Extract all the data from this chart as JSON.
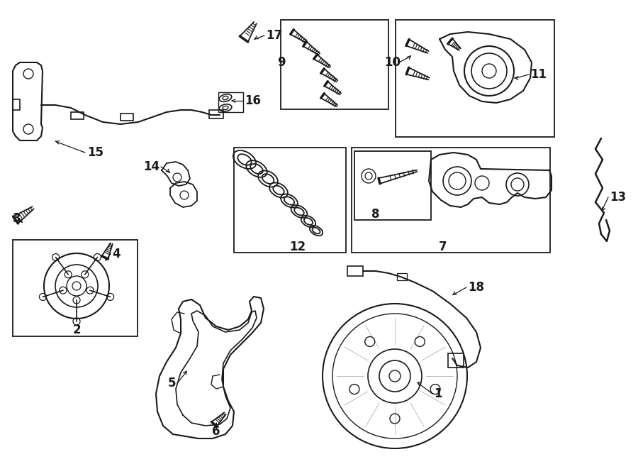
{
  "bg_color": "#ffffff",
  "line_color": "#1a1a1a",
  "figsize": [
    9.0,
    6.61
  ],
  "dpi": 100,
  "lw": 1.3,
  "label_fs": 12
}
